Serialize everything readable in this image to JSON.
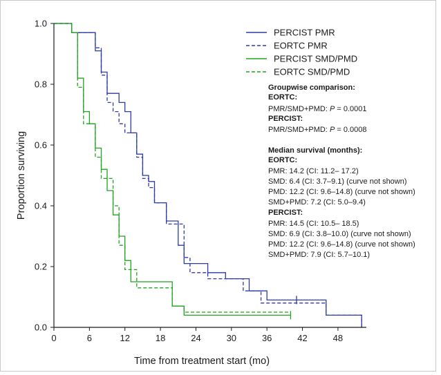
{
  "chart_data": {
    "type": "line",
    "xlabel": "Time from treatment start (mo)",
    "ylabel": "Proportion surviving",
    "xlim": [
      0,
      54
    ],
    "ylim": [
      0,
      1.0
    ],
    "x_ticks": [
      0,
      6,
      12,
      18,
      24,
      30,
      36,
      42,
      48
    ],
    "y_ticks": [
      0.0,
      0.2,
      0.4,
      0.6,
      0.8,
      1.0
    ],
    "x_tick_labels": [
      "0",
      "6",
      "12",
      "18",
      "24",
      "30",
      "36",
      "42",
      "48"
    ],
    "y_tick_labels": [
      "0.0",
      "0.2",
      "0.4",
      "0.6",
      "0.8",
      "1.0"
    ],
    "grid": false,
    "legend_position": "top-right",
    "series": [
      {
        "name": "PERCIST PMR",
        "color": "#2b3aa8",
        "dash": "solid",
        "steps": [
          [
            0,
            1.0
          ],
          [
            3,
            0.97
          ],
          [
            7,
            0.91
          ],
          [
            8,
            0.84
          ],
          [
            9,
            0.77
          ],
          [
            11,
            0.74
          ],
          [
            12,
            0.71
          ],
          [
            13,
            0.64
          ],
          [
            14,
            0.57
          ],
          [
            15,
            0.5
          ],
          [
            16,
            0.48
          ],
          [
            17,
            0.41
          ],
          [
            19,
            0.35
          ],
          [
            21,
            0.27
          ],
          [
            22,
            0.21
          ],
          [
            26,
            0.18
          ],
          [
            29,
            0.16
          ],
          [
            33,
            0.12
          ],
          [
            36,
            0.09
          ],
          [
            46,
            0.04
          ],
          [
            52,
            0.0
          ]
        ],
        "end": 52,
        "censor": [
          [
            41,
            0.09
          ]
        ]
      },
      {
        "name": "EORTC PMR",
        "color": "#2b3aa8",
        "dash": "dashed",
        "steps": [
          [
            0,
            1.0
          ],
          [
            3,
            0.97
          ],
          [
            7,
            0.92
          ],
          [
            8,
            0.83
          ],
          [
            9,
            0.74
          ],
          [
            10,
            0.71
          ],
          [
            11,
            0.67
          ],
          [
            12,
            0.64
          ],
          [
            14,
            0.56
          ],
          [
            15,
            0.49
          ],
          [
            16,
            0.46
          ],
          [
            17,
            0.41
          ],
          [
            19,
            0.34
          ],
          [
            22,
            0.23
          ],
          [
            23,
            0.18
          ],
          [
            26,
            0.16
          ],
          [
            32,
            0.12
          ],
          [
            35,
            0.08
          ],
          [
            46,
            0.04
          ],
          [
            52,
            0.0
          ]
        ],
        "end": 52
      },
      {
        "name": "PERCIST SMD/PMD",
        "color": "#1ea51e",
        "dash": "solid",
        "steps": [
          [
            0,
            1.0
          ],
          [
            3,
            0.97
          ],
          [
            4,
            0.82
          ],
          [
            5,
            0.71
          ],
          [
            6,
            0.67
          ],
          [
            7,
            0.59
          ],
          [
            8,
            0.52
          ],
          [
            9,
            0.45
          ],
          [
            10,
            0.37
          ],
          [
            11,
            0.3
          ],
          [
            12,
            0.22
          ],
          [
            13,
            0.15
          ],
          [
            20,
            0.07
          ],
          [
            22,
            0.04
          ]
        ],
        "end": 40,
        "censor": [
          [
            40,
            0.04
          ]
        ]
      },
      {
        "name": "EORTC SMD/PMD",
        "color": "#1ea51e",
        "dash": "dashed",
        "steps": [
          [
            0,
            1.0
          ],
          [
            3,
            0.97
          ],
          [
            4,
            0.79
          ],
          [
            5,
            0.67
          ],
          [
            7,
            0.56
          ],
          [
            8,
            0.49
          ],
          [
            10,
            0.4
          ],
          [
            11,
            0.27
          ],
          [
            12,
            0.19
          ],
          [
            14,
            0.13
          ],
          [
            20,
            0.07
          ],
          [
            22,
            0.05
          ]
        ],
        "end": 40
      }
    ]
  },
  "annotations": {
    "groupwise_heading": "Groupwise comparison:",
    "eortc_heading": "EORTC:",
    "eortc_comparison_prefix": "PMR/SMD+PMD: ",
    "p_symbol": "P",
    "eortc_comparison_value": " = 0.0001",
    "percist_heading": "PERCIST:",
    "percist_comparison_prefix": "PMR/SMD+PMD: ",
    "percist_comparison_value": " = 0.0008",
    "median_heading": "Median survival (months):",
    "median_eortc_heading": "EORTC:",
    "eortc_lines": [
      "PMR: 14.2 (CI: 11.2– 17.2)",
      "SMD: 6.4 (CI: 3.7–9.1) (curve not shown)",
      "PMD: 12.2 (CI: 9.6–14.8) (curve not shown)",
      "SMD+PMD: 7.2 (CI: 5.0–9.4)"
    ],
    "median_percist_heading": "PERCIST:",
    "percist_lines": [
      "PMR: 14.5 (CI: 10.5– 18.5)",
      "SMD: 6.9 (CI: 3.8–10.0) (curve not shown)",
      "PMD: 12.2 (CI: 9.6–14.8) (curve not shown)",
      "SMD+PMD: 7.9 (CI: 5.7–10.1)"
    ]
  }
}
